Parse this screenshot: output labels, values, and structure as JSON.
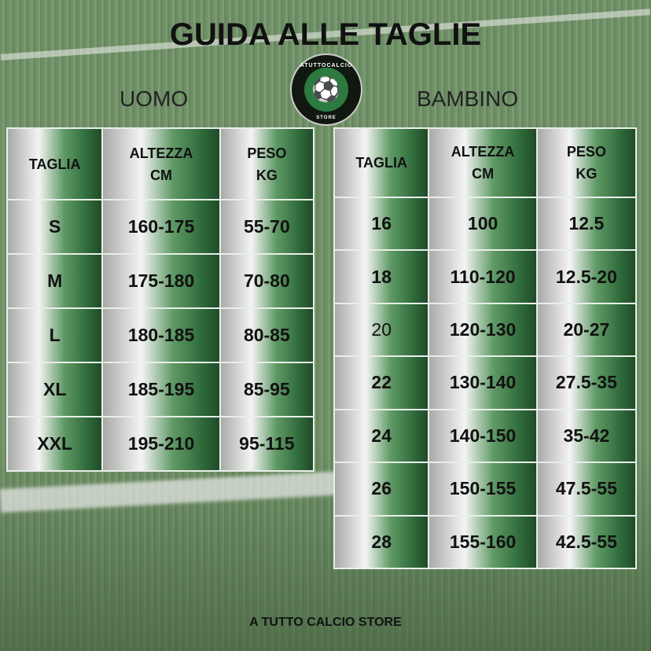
{
  "title": "GUIDA ALLE TAGLIE",
  "logo": {
    "text": "ATUTTOCALCIO",
    "sub": "STORE"
  },
  "uomo": {
    "label": "UOMO",
    "headers": [
      [
        "TAGLIA"
      ],
      [
        "ALTEZZA",
        "CM"
      ],
      [
        "PESO",
        "KG"
      ]
    ],
    "rows": [
      [
        "S",
        "160-175",
        "55-70"
      ],
      [
        "M",
        "175-180",
        "70-80"
      ],
      [
        "L",
        "180-185",
        "80-85"
      ],
      [
        "XL",
        "185-195",
        "85-95"
      ],
      [
        "XXL",
        "195-210",
        "95-115"
      ]
    ]
  },
  "bambino": {
    "label": "BAMBINO",
    "headers": [
      [
        "TAGLIA"
      ],
      [
        "ALTEZZA",
        "CM"
      ],
      [
        "PESO",
        "KG"
      ]
    ],
    "rows": [
      [
        "16",
        "100",
        "12.5"
      ],
      [
        "18",
        "110-120",
        "12.5-20"
      ],
      [
        "20",
        "120-130",
        "20-27"
      ],
      [
        "22",
        "130-140",
        "27.5-35"
      ],
      [
        "24",
        "140-150",
        "35-42"
      ],
      [
        "26",
        "150-155",
        "47.5-55"
      ],
      [
        "28",
        "155-160",
        "42.5-55"
      ]
    ]
  },
  "footer": "A TUTTO CALCIO STORE"
}
